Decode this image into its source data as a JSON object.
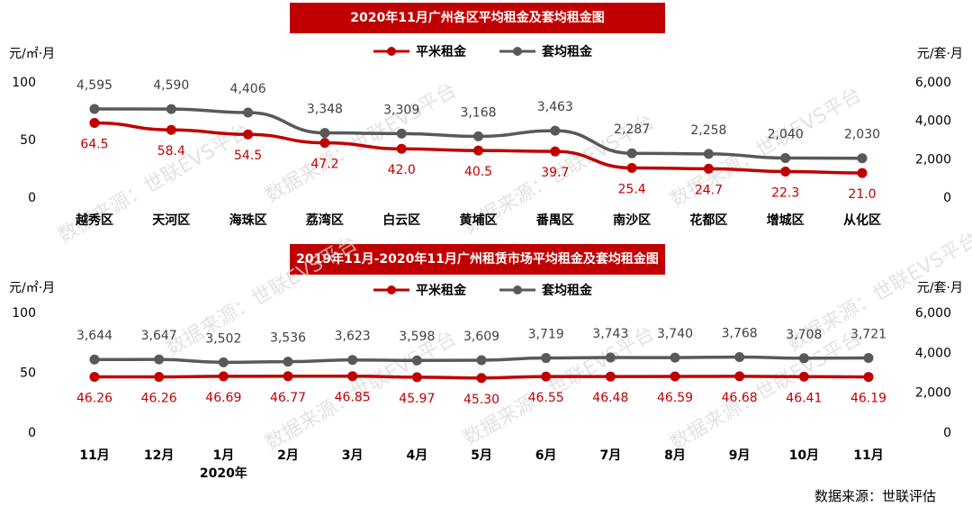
{
  "watermark": "数据来源：世联EVS平台",
  "source_note": "数据来源：世联评估",
  "colors": {
    "red": "#c00000",
    "gray": "#595959",
    "banner": "#c00000"
  },
  "chart_data": [
    {
      "type": "line",
      "title": "2020年11月广州各区平均租金及套均租金图",
      "left_unit": "元/㎡·月",
      "right_unit": "元/套·月",
      "left_axis": {
        "ticks": [
          "100",
          "50",
          "0"
        ],
        "ylim": [
          0,
          100
        ]
      },
      "right_axis": {
        "ticks": [
          "6,000",
          "4,000",
          "2,000",
          "0"
        ],
        "ylim": [
          0,
          6000
        ]
      },
      "categories": [
        "越秀区",
        "天河区",
        "海珠区",
        "荔湾区",
        "白云区",
        "黄埔区",
        "番禺区",
        "南沙区",
        "花都区",
        "增城区",
        "从化区"
      ],
      "series": [
        {
          "name": "平米租金",
          "axis": "left",
          "color": "#c00000",
          "values": [
            64.5,
            58.4,
            54.5,
            47.2,
            42.0,
            40.5,
            39.7,
            25.4,
            24.7,
            22.3,
            21.0
          ],
          "labels": [
            "64.5",
            "58.4",
            "54.5",
            "47.2",
            "42.0",
            "40.5",
            "39.7",
            "25.4",
            "24.7",
            "22.3",
            "21.0"
          ]
        },
        {
          "name": "套均租金",
          "axis": "right",
          "color": "#595959",
          "values": [
            4595,
            4590,
            4406,
            3348,
            3309,
            3168,
            3463,
            2287,
            2258,
            2040,
            2030
          ],
          "labels": [
            "4,595",
            "4,590",
            "4,406",
            "3,348",
            "3,309",
            "3,168",
            "3,463",
            "2,287",
            "2,258",
            "2,040",
            "2,030"
          ]
        }
      ]
    },
    {
      "type": "line",
      "title": "2019年11月-2020年11月广州租赁市场平均租金及套均租金图",
      "left_unit": "元/㎡·月",
      "right_unit": "元/套·月",
      "left_axis": {
        "ticks": [
          "100",
          "50",
          "0"
        ],
        "ylim": [
          0,
          100
        ]
      },
      "right_axis": {
        "ticks": [
          "6,000",
          "4,000",
          "2,000",
          "0"
        ],
        "ylim": [
          0,
          6000
        ]
      },
      "categories": [
        "11月",
        "12月",
        "1月",
        "2月",
        "3月",
        "4月",
        "5月",
        "6月",
        "7月",
        "8月",
        "9月",
        "10月",
        "11月"
      ],
      "category_sublabels": [
        "",
        "",
        "2020年",
        "",
        "",
        "",
        "",
        "",
        "",
        "",
        "",
        "",
        ""
      ],
      "series": [
        {
          "name": "平米租金",
          "axis": "left",
          "color": "#c00000",
          "values": [
            46.26,
            46.26,
            46.69,
            46.77,
            46.85,
            45.97,
            45.3,
            46.55,
            46.48,
            46.59,
            46.68,
            46.41,
            46.19
          ],
          "labels": [
            "46.26",
            "46.26",
            "46.69",
            "46.77",
            "46.85",
            "45.97",
            "45.30",
            "46.55",
            "46.48",
            "46.59",
            "46.68",
            "46.41",
            "46.19"
          ]
        },
        {
          "name": "套均租金",
          "axis": "right",
          "color": "#595959",
          "values": [
            3644,
            3647,
            3502,
            3536,
            3623,
            3598,
            3609,
            3719,
            3743,
            3740,
            3768,
            3708,
            3721
          ],
          "labels": [
            "3,644",
            "3,647",
            "3,502",
            "3,536",
            "3,623",
            "3,598",
            "3,609",
            "3,719",
            "3,743",
            "3,740",
            "3,768",
            "3,708",
            "3,721"
          ]
        }
      ]
    }
  ]
}
